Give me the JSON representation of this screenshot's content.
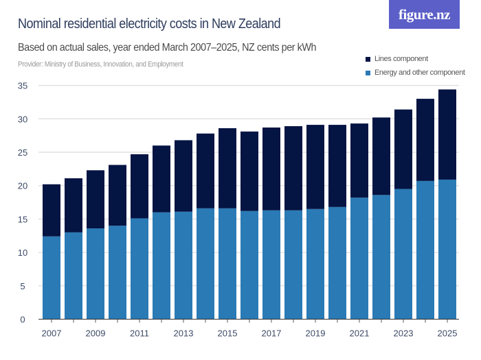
{
  "header": {
    "title": "Nominal residential electricity costs in New Zealand",
    "subtitle": "Based on actual sales, year ended March 2007–2025, NZ cents per kWh",
    "provider": "Provider: Ministry of Business, Innovation, and Employment",
    "logo": "figure.nz"
  },
  "colors": {
    "lines": "#041443",
    "energy": "#2a7ab5",
    "logo_bg": "#5b5fc7",
    "grid": "#e0e0e0"
  },
  "chart_data": {
    "type": "bar",
    "stacked": true,
    "title": "Nominal residential electricity costs in New Zealand",
    "subtitle": "Based on actual sales, year ended March 2007–2025, NZ cents per kWh",
    "categories": [
      "2007",
      "2008",
      "2009",
      "2010",
      "2011",
      "2012",
      "2013",
      "2014",
      "2015",
      "2016",
      "2017",
      "2018",
      "2019",
      "2020",
      "2021",
      "2022",
      "2023",
      "2024",
      "2025"
    ],
    "x_tick_labels": [
      "2007",
      "2009",
      "2011",
      "2013",
      "2015",
      "2017",
      "2019",
      "2021",
      "2023",
      "2025"
    ],
    "y_tick_labels": [
      "0",
      "5",
      "10",
      "15",
      "20",
      "25",
      "30",
      "35"
    ],
    "ylim": [
      0,
      35
    ],
    "grid": true,
    "legend_position": "top-right",
    "series": [
      {
        "name": "Energy and other component",
        "color": "#2a7ab5",
        "values": [
          12.4,
          13.0,
          13.6,
          14.0,
          15.1,
          16.0,
          16.1,
          16.6,
          16.6,
          16.2,
          16.3,
          16.3,
          16.5,
          16.8,
          18.2,
          18.6,
          19.5,
          20.7,
          20.9
        ]
      },
      {
        "name": "Lines component",
        "color": "#041443",
        "values": [
          7.8,
          8.1,
          8.7,
          9.1,
          9.6,
          10.0,
          10.7,
          11.2,
          12.0,
          11.9,
          12.4,
          12.6,
          12.6,
          12.3,
          11.1,
          11.6,
          11.9,
          12.3,
          13.5
        ]
      }
    ]
  },
  "legend": {
    "items": [
      "Lines component",
      "Energy and other component"
    ]
  }
}
